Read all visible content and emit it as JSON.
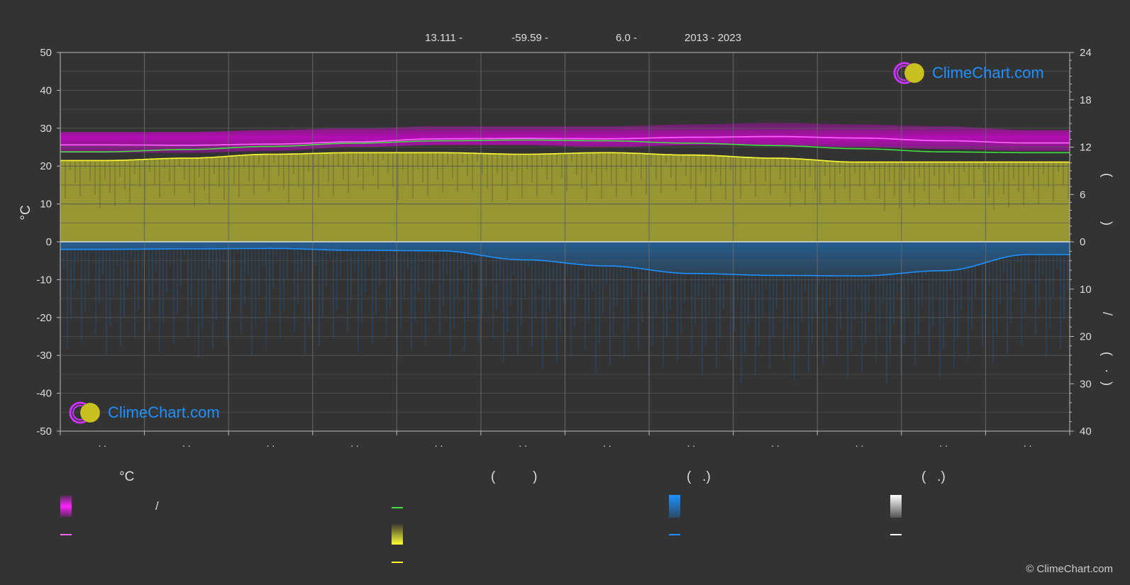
{
  "header": {
    "lat": "13.111 -",
    "lon": "-59.59 -",
    "elev": "6.0 -",
    "years": "2013 - 2023"
  },
  "brand": {
    "logo_text": "ClimeChart.com",
    "copyright": "© ClimeChart.com"
  },
  "legend": {
    "col1_header": "°C",
    "col1_text1": "/",
    "col2_header": "(          )",
    "col3_header": "(   .)",
    "col4_header": "(   .)"
  },
  "colors": {
    "background": "#333333",
    "day_max": "#ff66ff",
    "temp_band": "#e000e0",
    "daylight": "#44dd44",
    "sunshine": "#ffff33",
    "sunshine_fill": "#9c9c34",
    "rain": "#1e90ff",
    "snow": "#ffffff",
    "grid": "#555555",
    "brand": "#1e90ff"
  },
  "chart_data": {
    "type": "line",
    "x": [
      "Jan",
      "Feb",
      "Mar",
      "Apr",
      "May",
      "Jun",
      "Jul",
      "Aug",
      "Sep",
      "Oct",
      "Nov",
      "Dec"
    ],
    "x_tick_labels": [
      ". .",
      ". .",
      ". .",
      ". .",
      ". .",
      ". .",
      ". .",
      ". .",
      ". .",
      ". .",
      ". .",
      ". ."
    ],
    "ylabel_left": "°C",
    "ylabel_right": "(   )   /   (   ·   )",
    "ylim_left": [
      -50,
      50
    ],
    "yticks_left": [
      50,
      40,
      30,
      20,
      10,
      0,
      -10,
      -20,
      -30,
      -40,
      -50
    ],
    "right_top_ticks": [
      24,
      18,
      12,
      6,
      0
    ],
    "right_bottom_ticks": [
      0,
      10,
      20,
      30,
      40
    ],
    "grid": true,
    "series": [
      {
        "key": "temp_max_band",
        "values": [
          29,
          29,
          29.5,
          30,
          30.5,
          30.5,
          30.5,
          31,
          31.5,
          31,
          30.5,
          29.5
        ]
      },
      {
        "key": "temp_min_band",
        "values": [
          23.5,
          23.5,
          24,
          25,
          25.5,
          25.5,
          25,
          25.5,
          25.5,
          25,
          24.5,
          24
        ]
      },
      {
        "key": "mean_temp",
        "values": [
          25.6,
          25.5,
          25.8,
          26.4,
          27.2,
          27.3,
          27.2,
          27.6,
          27.8,
          27.4,
          26.7,
          26.1
        ]
      },
      {
        "key": "daylight_hours",
        "values": [
          11.4,
          11.7,
          12.1,
          12.5,
          12.8,
          12.9,
          12.8,
          12.5,
          12.2,
          11.8,
          11.4,
          11.3
        ]
      },
      {
        "key": "sunshine_hours",
        "values": [
          10.3,
          10.6,
          11.1,
          11.3,
          11.3,
          11.1,
          11.3,
          11.0,
          10.6,
          10.1,
          10.1,
          10.1
        ]
      },
      {
        "key": "rain_mm",
        "values": [
          1.6,
          1.5,
          1.4,
          1.8,
          1.9,
          3.8,
          5.1,
          6.7,
          7.1,
          7.2,
          6.1,
          2.7
        ]
      }
    ]
  }
}
